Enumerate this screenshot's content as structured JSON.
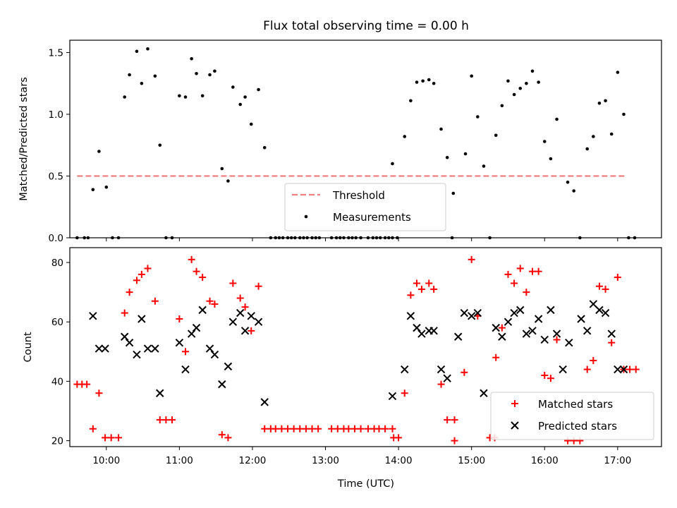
{
  "chart_data": [
    {
      "type": "scatter",
      "title": "Flux total observing time = 0.00 h",
      "xlabel": "",
      "ylabel": "Matched/Predicted stars",
      "xlim": [
        "09:30",
        "17:36"
      ],
      "ylim": [
        0,
        1.6
      ],
      "yticks": [
        "0.0",
        "0.5",
        "1.0",
        "1.5"
      ],
      "grid": false,
      "legend": {
        "placement": "lower-center",
        "entries": [
          "Threshold",
          "Measurements"
        ]
      },
      "threshold": {
        "name": "Threshold",
        "y": 0.5,
        "x_start": "09:36",
        "x_end": "17:06",
        "color": "#f08080"
      },
      "series": [
        {
          "name": "Measurements",
          "color": "#000000",
          "points": [
            [
              "09:36",
              0
            ],
            [
              "09:42",
              0
            ],
            [
              "09:45",
              0
            ],
            [
              "09:49",
              0.39
            ],
            [
              "09:54",
              0.7
            ],
            [
              "10:00",
              0.41
            ],
            [
              "10:05",
              0
            ],
            [
              "10:10",
              0
            ],
            [
              "10:15",
              1.14
            ],
            [
              "10:19",
              1.32
            ],
            [
              "10:25",
              1.51
            ],
            [
              "10:29",
              1.25
            ],
            [
              "10:34",
              1.53
            ],
            [
              "10:40",
              1.31
            ],
            [
              "10:44",
              0.75
            ],
            [
              "10:49",
              0
            ],
            [
              "10:54",
              0
            ],
            [
              "11:00",
              1.15
            ],
            [
              "11:05",
              1.14
            ],
            [
              "11:10",
              1.45
            ],
            [
              "11:14",
              1.33
            ],
            [
              "11:19",
              1.15
            ],
            [
              "11:25",
              1.32
            ],
            [
              "11:29",
              1.35
            ],
            [
              "11:35",
              0.56
            ],
            [
              "11:40",
              0.46
            ],
            [
              "11:44",
              1.22
            ],
            [
              "11:50",
              1.08
            ],
            [
              "11:54",
              1.14
            ],
            [
              "11:59",
              0.92
            ],
            [
              "12:05",
              1.2
            ],
            [
              "12:10",
              0.73
            ],
            [
              "12:15",
              0
            ],
            [
              "12:19",
              0
            ],
            [
              "12:22",
              0
            ],
            [
              "12:25",
              0
            ],
            [
              "12:29",
              0
            ],
            [
              "12:32",
              0
            ],
            [
              "12:35",
              0
            ],
            [
              "12:39",
              0
            ],
            [
              "12:42",
              0
            ],
            [
              "12:45",
              0
            ],
            [
              "12:49",
              0
            ],
            [
              "12:52",
              0
            ],
            [
              "12:55",
              0
            ],
            [
              "13:05",
              0
            ],
            [
              "13:09",
              0
            ],
            [
              "13:12",
              0
            ],
            [
              "13:15",
              0
            ],
            [
              "13:19",
              0
            ],
            [
              "13:22",
              0
            ],
            [
              "13:25",
              0
            ],
            [
              "13:29",
              0
            ],
            [
              "13:35",
              0
            ],
            [
              "13:39",
              0
            ],
            [
              "13:42",
              0
            ],
            [
              "13:45",
              0
            ],
            [
              "13:49",
              0
            ],
            [
              "13:52",
              0
            ],
            [
              "13:55",
              0
            ],
            [
              "13:59",
              0
            ],
            [
              "13:55",
              0.6
            ],
            [
              "14:05",
              0.82
            ],
            [
              "14:10",
              1.11
            ],
            [
              "14:15",
              1.26
            ],
            [
              "14:20",
              1.27
            ],
            [
              "14:25",
              1.28
            ],
            [
              "14:29",
              1.25
            ],
            [
              "14:35",
              0.88
            ],
            [
              "14:40",
              0.65
            ],
            [
              "14:45",
              0.36
            ],
            [
              "14:44",
              0
            ],
            [
              "14:55",
              0.68
            ],
            [
              "15:00",
              1.31
            ],
            [
              "15:05",
              0.98
            ],
            [
              "15:10",
              0.58
            ],
            [
              "15:15",
              0
            ],
            [
              "15:20",
              0.83
            ],
            [
              "15:25",
              1.07
            ],
            [
              "15:30",
              1.27
            ],
            [
              "15:35",
              1.16
            ],
            [
              "15:40",
              1.21
            ],
            [
              "15:45",
              1.25
            ],
            [
              "15:50",
              1.35
            ],
            [
              "15:55",
              1.26
            ],
            [
              "16:00",
              0.78
            ],
            [
              "16:05",
              0.64
            ],
            [
              "16:10",
              0.96
            ],
            [
              "16:19",
              0.45
            ],
            [
              "16:24",
              0.38
            ],
            [
              "16:29",
              0
            ],
            [
              "16:35",
              0.72
            ],
            [
              "16:40",
              0.82
            ],
            [
              "16:45",
              1.09
            ],
            [
              "16:50",
              1.11
            ],
            [
              "16:55",
              0.84
            ],
            [
              "17:00",
              1.34
            ],
            [
              "17:05",
              1.0
            ],
            [
              "17:09",
              0
            ],
            [
              "17:14",
              0
            ]
          ]
        }
      ]
    },
    {
      "type": "scatter",
      "title": "",
      "xlabel": "Time (UTC)",
      "ylabel": "Count",
      "xlim": [
        "09:30",
        "17:36"
      ],
      "ylim": [
        18,
        85
      ],
      "xticks": [
        "10:00",
        "11:00",
        "12:00",
        "13:00",
        "14:00",
        "15:00",
        "16:00",
        "17:00"
      ],
      "yticks": [
        "20",
        "40",
        "60",
        "80"
      ],
      "grid": false,
      "legend": {
        "placement": "lower-right",
        "entries": [
          "Matched stars",
          "Predicted stars"
        ]
      },
      "series": [
        {
          "name": "Matched stars",
          "color": "#ff0000",
          "marker": "plus",
          "points": [
            [
              "09:36",
              39
            ],
            [
              "09:40",
              39
            ],
            [
              "09:44",
              39
            ],
            [
              "09:49",
              24
            ],
            [
              "09:54",
              36
            ],
            [
              "09:59",
              21
            ],
            [
              "10:04",
              21
            ],
            [
              "10:10",
              21
            ],
            [
              "10:15",
              63
            ],
            [
              "10:19",
              70
            ],
            [
              "10:25",
              74
            ],
            [
              "10:29",
              76
            ],
            [
              "10:34",
              78
            ],
            [
              "10:40",
              67
            ],
            [
              "10:44",
              27
            ],
            [
              "10:49",
              27
            ],
            [
              "10:54",
              27
            ],
            [
              "11:00",
              61
            ],
            [
              "11:05",
              50
            ],
            [
              "11:10",
              81
            ],
            [
              "11:14",
              77
            ],
            [
              "11:19",
              75
            ],
            [
              "11:25",
              67
            ],
            [
              "11:29",
              66
            ],
            [
              "11:35",
              22
            ],
            [
              "11:40",
              21
            ],
            [
              "11:44",
              73
            ],
            [
              "11:50",
              68
            ],
            [
              "11:54",
              65
            ],
            [
              "11:59",
              57
            ],
            [
              "12:05",
              72
            ],
            [
              "12:10",
              24
            ],
            [
              "12:15",
              24
            ],
            [
              "12:19",
              24
            ],
            [
              "12:24",
              24
            ],
            [
              "12:29",
              24
            ],
            [
              "12:34",
              24
            ],
            [
              "12:39",
              24
            ],
            [
              "12:44",
              24
            ],
            [
              "12:49",
              24
            ],
            [
              "12:54",
              24
            ],
            [
              "13:05",
              24
            ],
            [
              "13:10",
              24
            ],
            [
              "13:15",
              24
            ],
            [
              "13:19",
              24
            ],
            [
              "13:24",
              24
            ],
            [
              "13:29",
              24
            ],
            [
              "13:35",
              24
            ],
            [
              "13:40",
              24
            ],
            [
              "13:44",
              24
            ],
            [
              "13:49",
              24
            ],
            [
              "13:55",
              24
            ],
            [
              "13:56",
              21
            ],
            [
              "14:00",
              21
            ],
            [
              "14:05",
              36
            ],
            [
              "14:10",
              69
            ],
            [
              "14:15",
              73
            ],
            [
              "14:19",
              71
            ],
            [
              "14:25",
              73
            ],
            [
              "14:29",
              71
            ],
            [
              "14:35",
              39
            ],
            [
              "14:40",
              27
            ],
            [
              "14:46",
              27
            ],
            [
              "14:46",
              20
            ],
            [
              "14:54",
              43
            ],
            [
              "15:00",
              81
            ],
            [
              "15:05",
              62
            ],
            [
              "15:15",
              21
            ],
            [
              "15:19",
              21
            ],
            [
              "15:20",
              48
            ],
            [
              "15:25",
              58
            ],
            [
              "15:30",
              76
            ],
            [
              "15:35",
              73
            ],
            [
              "15:40",
              78
            ],
            [
              "15:45",
              70
            ],
            [
              "15:50",
              77
            ],
            [
              "15:55",
              77
            ],
            [
              "16:00",
              42
            ],
            [
              "16:05",
              41
            ],
            [
              "16:10",
              54
            ],
            [
              "16:19",
              20
            ],
            [
              "16:24",
              20
            ],
            [
              "16:29",
              20
            ],
            [
              "16:35",
              44
            ],
            [
              "16:40",
              47
            ],
            [
              "16:45",
              72
            ],
            [
              "16:50",
              71
            ],
            [
              "16:55",
              53
            ],
            [
              "17:00",
              75
            ],
            [
              "17:05",
              44
            ],
            [
              "17:10",
              44
            ],
            [
              "17:15",
              44
            ]
          ]
        },
        {
          "name": "Predicted stars",
          "color": "#000000",
          "marker": "x",
          "points": [
            [
              "09:49",
              62
            ],
            [
              "09:54",
              51
            ],
            [
              "09:59",
              51
            ],
            [
              "10:15",
              55
            ],
            [
              "10:19",
              53
            ],
            [
              "10:25",
              49
            ],
            [
              "10:29",
              61
            ],
            [
              "10:34",
              51
            ],
            [
              "10:40",
              51
            ],
            [
              "10:44",
              36
            ],
            [
              "11:00",
              53
            ],
            [
              "11:05",
              44
            ],
            [
              "11:10",
              56
            ],
            [
              "11:14",
              58
            ],
            [
              "11:19",
              64
            ],
            [
              "11:25",
              51
            ],
            [
              "11:29",
              49
            ],
            [
              "11:35",
              39
            ],
            [
              "11:40",
              45
            ],
            [
              "11:44",
              60
            ],
            [
              "11:50",
              63
            ],
            [
              "11:54",
              57
            ],
            [
              "11:59",
              62
            ],
            [
              "12:05",
              60
            ],
            [
              "12:10",
              33
            ],
            [
              "13:55",
              35
            ],
            [
              "14:05",
              44
            ],
            [
              "14:10",
              62
            ],
            [
              "14:15",
              58
            ],
            [
              "14:19",
              56
            ],
            [
              "14:25",
              57
            ],
            [
              "14:29",
              57
            ],
            [
              "14:35",
              44
            ],
            [
              "14:40",
              41
            ],
            [
              "14:49",
              55
            ],
            [
              "14:54",
              63
            ],
            [
              "15:00",
              62
            ],
            [
              "15:05",
              63
            ],
            [
              "15:10",
              36
            ],
            [
              "15:20",
              58
            ],
            [
              "15:25",
              55
            ],
            [
              "15:30",
              60
            ],
            [
              "15:35",
              63
            ],
            [
              "15:40",
              64
            ],
            [
              "15:45",
              56
            ],
            [
              "15:50",
              57
            ],
            [
              "15:55",
              61
            ],
            [
              "16:00",
              54
            ],
            [
              "16:05",
              64
            ],
            [
              "16:10",
              56
            ],
            [
              "16:15",
              44
            ],
            [
              "16:20",
              53
            ],
            [
              "16:30",
              61
            ],
            [
              "16:35",
              57
            ],
            [
              "16:40",
              66
            ],
            [
              "16:45",
              64
            ],
            [
              "16:50",
              63
            ],
            [
              "16:55",
              56
            ],
            [
              "17:00",
              44
            ],
            [
              "17:05",
              44
            ]
          ]
        }
      ]
    }
  ]
}
